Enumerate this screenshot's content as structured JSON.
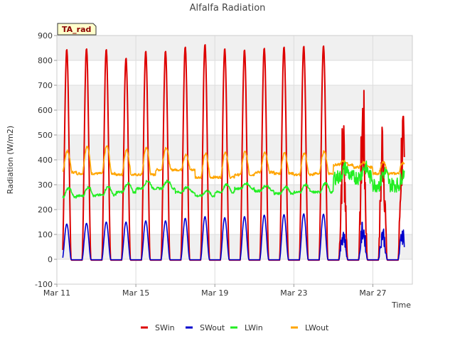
{
  "chart_data": {
    "type": "line",
    "title": "Alfalfa Radiation",
    "xlabel": "Time",
    "ylabel": "Radiation (W/m2)",
    "badge": "TA_rad",
    "xlim": [
      0,
      18.0
    ],
    "ylim": [
      -100,
      900
    ],
    "yticks": [
      -100,
      0,
      100,
      200,
      300,
      400,
      500,
      600,
      700,
      800,
      900
    ],
    "xticks": [
      {
        "value": 0,
        "label": "Mar 11"
      },
      {
        "value": 4,
        "label": "Mar 15"
      },
      {
        "value": 8,
        "label": "Mar 19"
      },
      {
        "value": 12,
        "label": "Mar 23"
      },
      {
        "value": 16,
        "label": "Mar 27"
      }
    ],
    "grid": true,
    "legend_position": "bottom",
    "x_units": "days since Mar 11 00:00",
    "series": [
      {
        "name": "SWin",
        "color": "#dd0000",
        "daily_peak": [
          845,
          848,
          845,
          810,
          838,
          838,
          855,
          865,
          848,
          843,
          850,
          855,
          858,
          860,
          640,
          760,
          650
        ],
        "night_value": -3
      },
      {
        "name": "SWout",
        "color": "#0000cc",
        "daily_peak": [
          142,
          145,
          150,
          150,
          155,
          155,
          165,
          172,
          168,
          172,
          178,
          180,
          183,
          182,
          150,
          172,
          150
        ],
        "night_value": -2
      },
      {
        "name": "LWin",
        "color": "#22ee22",
        "daily_base": [
          250,
          255,
          258,
          270,
          285,
          285,
          270,
          255,
          270,
          285,
          275,
          265,
          270,
          270,
          330,
          330,
          300
        ],
        "daily_peak": [
          285,
          290,
          292,
          305,
          315,
          315,
          290,
          275,
          300,
          305,
          295,
          290,
          300,
          305,
          365,
          370,
          350
        ]
      },
      {
        "name": "LWout",
        "color": "#ffa500",
        "daily_base": [
          350,
          345,
          345,
          340,
          340,
          360,
          360,
          330,
          330,
          340,
          350,
          345,
          340,
          345,
          380,
          370,
          345
        ],
        "daily_peak": [
          435,
          455,
          455,
          440,
          450,
          450,
          420,
          425,
          432,
          432,
          428,
          428,
          428,
          435,
          395,
          390,
          390
        ]
      }
    ]
  }
}
